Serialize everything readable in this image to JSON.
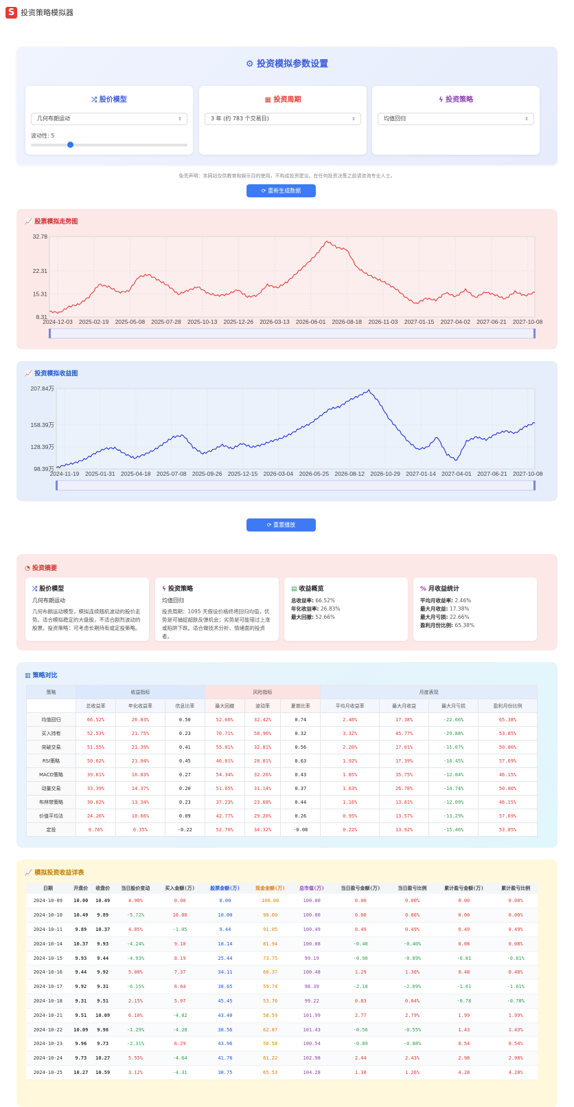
{
  "app": {
    "title": "投资策略模拟器",
    "logo_letter": "S"
  },
  "settings": {
    "title": "投资模拟参数设置",
    "cards": [
      {
        "title": "股价模型",
        "icon": "shuffle-icon",
        "value": "几何布朗运动",
        "color": "#3b5bdb"
      },
      {
        "title": "投资周期",
        "icon": "calendar-icon",
        "value": "3 年 (约 783 个交易日)",
        "color": "#e53935"
      },
      {
        "title": "投资策略",
        "icon": "bolt-icon",
        "value": "均值回归",
        "color": "#8e44ad"
      }
    ],
    "volatility_label": "波动性: 5",
    "volatility_value": 5,
    "volatility_max": 20
  },
  "disclaimer": "免责声明：本网站仅供教育和娱乐目的使用，不构成投资建议。在任何投资决策之前请咨询专业人士。",
  "regen_button": "重新生成数据",
  "replay_button": "重置播放",
  "price_chart": {
    "title": "股票模拟走势图"
  },
  "invest_chart": {
    "title": "投资模拟收益图"
  },
  "chart_data": [
    {
      "type": "line",
      "title": "股票模拟走势图",
      "y_ticks": [
        "32.78",
        "22.31",
        "15.31",
        "8.31"
      ],
      "ylim": [
        8.31,
        32.78
      ],
      "x_ticks": [
        "2024-12-03",
        "2025-02-19",
        "2025-05-08",
        "2025-07-28",
        "2025-10-13",
        "2025-12-26",
        "2026-03-13",
        "2026-06-01",
        "2026-08-18",
        "2026-11-03",
        "2027-01-15",
        "2027-04-02",
        "2027-06-21",
        "2027-10-08"
      ],
      "series": [
        {
          "color": "#e53935",
          "values": [
            10,
            9.6,
            11.5,
            12.2,
            14.4,
            18.2,
            17.5,
            15.8,
            16.2,
            20.5,
            21.2,
            19.5,
            17.8,
            15.2,
            16.4,
            17.5,
            15.5,
            14.8,
            15.2,
            16.6,
            14.4,
            14.9,
            18.1,
            17.2,
            19.0,
            21.8,
            24.5,
            27.5,
            31.4,
            29.5,
            28.8,
            23.5,
            21.4,
            20.0,
            18.6,
            16.8,
            14.2,
            12.3,
            14.0,
            13.4,
            15.7,
            14.5,
            16.6,
            14.2,
            15.9,
            15.0,
            13.8,
            16.0,
            14.8,
            15.8
          ]
        }
      ]
    },
    {
      "type": "line",
      "title": "投资模拟收益图",
      "y_ticks": [
        "207.84万",
        "158.39万",
        "128.39万",
        "98.39万"
      ],
      "ylim": [
        98.39,
        207.84
      ],
      "x_ticks": [
        "2024-11-19",
        "2025-01-31",
        "2025-04-18",
        "2025-07-08",
        "2025-09-26",
        "2025-12-15",
        "2026-03-04",
        "2026-05-25",
        "2026-08-12",
        "2026-10-29",
        "2027-01-14",
        "2027-04-01",
        "2027-06-21",
        "2027-10-08"
      ],
      "series": [
        {
          "color": "#1f2fd6",
          "values": [
            100,
            104,
            107,
            112,
            120,
            126,
            127,
            119,
            113,
            118,
            124,
            133,
            142,
            144,
            128,
            119,
            124,
            131,
            126,
            133,
            128,
            131,
            136,
            140,
            146,
            154,
            160,
            170,
            180,
            183,
            192,
            198,
            205,
            190,
            168,
            152,
            136,
            125,
            128,
            142,
            118,
            110,
            136,
            142,
            138,
            146,
            150,
            147,
            156,
            161
          ]
        }
      ]
    }
  ],
  "summary": {
    "title": "投资摘要",
    "cards": [
      {
        "title": "股价模型",
        "icon": "shuffle-icon",
        "name": "几何布朗运动",
        "desc": "几何布朗运动模型，模拟连续随机波动的股价走势。适合模拟稳定的大盘股，不适合剧烈波动的股票。投资策略：可考虑长期持有或定投策略。"
      },
      {
        "title": "投资策略",
        "icon": "bolt-icon",
        "name": "均值回归",
        "desc": "投资周期：1095 天假设价格终将回归均值，优势是可捕捉超跌反弹机会；劣势是可能错过上涨或陷阱下跌。适合做技术分析、情绪面的投资者。"
      },
      {
        "title": "收益概览",
        "icon": "chart-icon",
        "lines": [
          {
            "k": "总收益率:",
            "v": "66.52%"
          },
          {
            "k": "年化收益率:",
            "v": "26.83%"
          },
          {
            "k": "最大回撤:",
            "v": "52.66%"
          }
        ]
      },
      {
        "title": "月收益统计",
        "icon": "percent-icon",
        "lines": [
          {
            "k": "平均月收益率:",
            "v": "2.46%"
          },
          {
            "k": "最大月收益:",
            "v": "17.38%"
          },
          {
            "k": "最大月亏损:",
            "v": "22.66%"
          },
          {
            "k": "盈利月份比例:",
            "v": "65.38%"
          }
        ]
      }
    ]
  },
  "compare": {
    "title": "策略对比",
    "groups": [
      "策略",
      "收益指标",
      "风险指标",
      "月度表现"
    ],
    "headers": [
      "总收益率",
      "年化收益率",
      "信息比率",
      "最大回撤",
      "波动率",
      "夏普比率",
      "平均月收益率",
      "最大月收益",
      "最大月亏损",
      "盈利月份比例"
    ],
    "rows": [
      [
        "均值回归",
        "66.52%",
        "26.83%",
        "0.50",
        "52.66%",
        "32.42%",
        "0.74",
        "2.46%",
        "17.38%",
        "-22.66%",
        "65.38%"
      ],
      [
        "买入持有",
        "52.53%",
        "21.75%",
        "0.23",
        "70.71%",
        "58.96%",
        "0.32",
        "3.32%",
        "45.77%",
        "-29.88%",
        "53.85%"
      ],
      [
        "突破交易",
        "51.55%",
        "21.39%",
        "0.41",
        "55.01%",
        "32.81%",
        "0.56",
        "2.20%",
        "17.01%",
        "-11.07%",
        "50.00%"
      ],
      [
        "RSI策略",
        "50.62%",
        "21.04%",
        "0.45",
        "46.01%",
        "28.81%",
        "0.63",
        "1.92%",
        "17.39%",
        "-16.45%",
        "57.69%"
      ],
      [
        "MACD策略",
        "39.61%",
        "16.83%",
        "0.27",
        "54.34%",
        "32.26%",
        "0.43",
        "1.85%",
        "35.75%",
        "-12.84%",
        "46.15%"
      ],
      [
        "动量交易",
        "33.39%",
        "14.37%",
        "0.20",
        "51.65%",
        "31.14%",
        "0.37",
        "1.63%",
        "26.78%",
        "-14.74%",
        "50.00%"
      ],
      [
        "布林带策略",
        "30.82%",
        "13.34%",
        "0.23",
        "37.23%",
        "23.68%",
        "0.44",
        "1.16%",
        "13.81%",
        "-12.09%",
        "46.15%"
      ],
      [
        "价值平均法",
        "24.26%",
        "10.66%",
        "0.09",
        "42.77%",
        "29.20%",
        "0.26",
        "0.95%",
        "13.57%",
        "-13.29%",
        "57.69%"
      ],
      [
        "定投",
        "0.76%",
        "0.35%",
        "-0.22",
        "52.70%",
        "34.32%",
        "-0.08",
        "0.22%",
        "13.92%",
        "-15.46%",
        "53.85%"
      ]
    ]
  },
  "detail": {
    "title": "模拟投资收益详表",
    "headers": [
      "日期",
      "开盘价",
      "收盘价",
      "当日股价变动",
      "买入金额(万)",
      "股票金额(万)",
      "现金金额(万)",
      "总市值(万)",
      "当日盈亏金额(万)",
      "当日盈亏比例",
      "累计盈亏金额(万)",
      "累计盈亏比例"
    ],
    "rows": [
      [
        "2024-10-09",
        "10.00",
        "10.49",
        "4.90%",
        "0.00",
        "0.00",
        "100.00",
        "100.00",
        "0.00",
        "0.00%",
        "0.00",
        "0.00%"
      ],
      [
        "2024-10-10",
        "10.49",
        "9.89",
        "-5.72%",
        "10.00",
        "10.00",
        "90.00",
        "100.00",
        "0.00",
        "0.00%",
        "0.00",
        "0.00%"
      ],
      [
        "2024-10-11",
        "9.89",
        "10.37",
        "4.85%",
        "-1.05",
        "9.44",
        "91.05",
        "100.49",
        "0.49",
        "0.49%",
        "0.49",
        "0.49%"
      ],
      [
        "2024-10-14",
        "10.37",
        "9.93",
        "-4.24%",
        "9.10",
        "18.14",
        "81.94",
        "100.08",
        "-0.40",
        "-0.40%",
        "0.08",
        "0.08%"
      ],
      [
        "2024-10-15",
        "9.93",
        "9.44",
        "-4.93%",
        "8.19",
        "25.44",
        "73.75",
        "99.19",
        "-0.90",
        "-0.89%",
        "-0.81",
        "-0.81%"
      ],
      [
        "2024-10-16",
        "9.44",
        "9.92",
        "5.08%",
        "7.37",
        "34.11",
        "66.37",
        "100.48",
        "1.29",
        "1.30%",
        "0.48",
        "0.48%"
      ],
      [
        "2024-10-17",
        "9.92",
        "9.31",
        "-6.15%",
        "6.64",
        "38.65",
        "59.74",
        "98.39",
        "-2.10",
        "-2.09%",
        "-1.61",
        "-1.61%"
      ],
      [
        "2024-10-18",
        "9.31",
        "9.51",
        "2.15%",
        "5.97",
        "45.45",
        "53.76",
        "99.22",
        "0.83",
        "0.84%",
        "-0.78",
        "-0.78%"
      ],
      [
        "2024-10-21",
        "9.51",
        "10.09",
        "6.10%",
        "-4.82",
        "43.40",
        "58.59",
        "101.99",
        "2.77",
        "2.79%",
        "1.99",
        "1.99%"
      ],
      [
        "2024-10-22",
        "10.09",
        "9.96",
        "-1.29%",
        "-4.28",
        "38.56",
        "62.87",
        "101.43",
        "-0.56",
        "-0.55%",
        "1.43",
        "1.43%"
      ],
      [
        "2024-10-23",
        "9.96",
        "9.73",
        "-2.31%",
        "6.29",
        "43.96",
        "56.58",
        "100.54",
        "-0.89",
        "-0.88%",
        "0.54",
        "0.54%"
      ],
      [
        "2024-10-24",
        "9.73",
        "10.27",
        "5.55%",
        "-4.64",
        "41.76",
        "61.22",
        "102.98",
        "2.44",
        "2.43%",
        "2.98",
        "2.98%"
      ],
      [
        "2024-10-25",
        "10.27",
        "10.59",
        "3.12%",
        "-4.31",
        "38.75",
        "65.53",
        "104.28",
        "1.30",
        "1.26%",
        "4.28",
        "4.28%"
      ]
    ]
  }
}
